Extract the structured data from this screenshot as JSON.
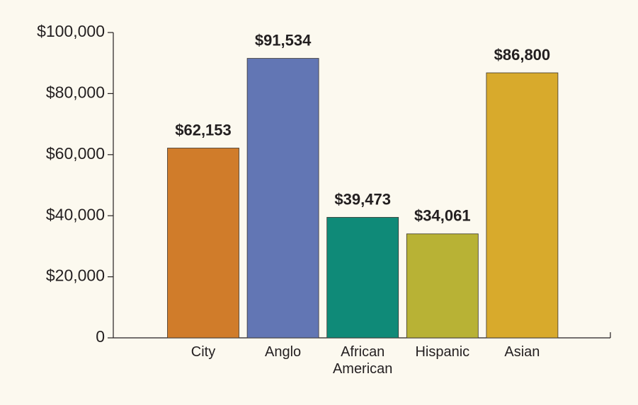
{
  "chart_data": {
    "type": "bar",
    "categories": [
      "City",
      "Anglo",
      "African American",
      "Hispanic",
      "Asian"
    ],
    "values": [
      62153,
      91534,
      39473,
      34061,
      86800
    ],
    "value_labels": [
      "$62,153",
      "$91,534",
      "$39,473",
      "$34,061",
      "$86,800"
    ],
    "colors": [
      "#d07c2a",
      "#6276b4",
      "#0f8a78",
      "#b8b235",
      "#d8aa2c"
    ],
    "ylim": [
      0,
      100000
    ],
    "yticks": [
      0,
      {
        "value": 20000,
        "label": "$20,000"
      },
      {
        "value": 40000,
        "label": "$40,000"
      },
      {
        "value": 60000,
        "label": "$60,000"
      },
      {
        "value": 80000,
        "label": "$80,000"
      },
      {
        "value": 100000,
        "label": "$100,000"
      }
    ]
  }
}
